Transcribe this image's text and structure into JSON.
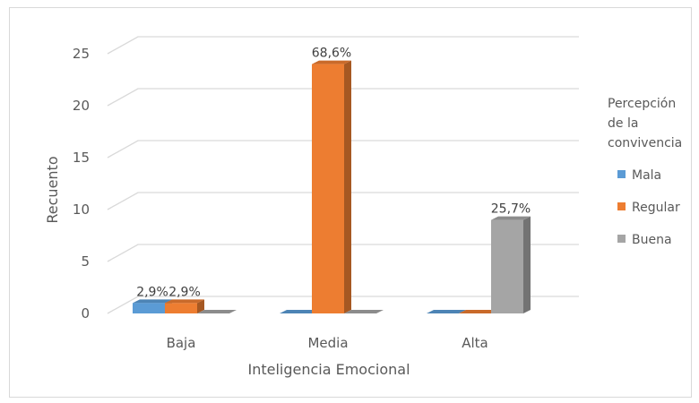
{
  "chart_data": {
    "type": "bar",
    "title": "",
    "xlabel": "Inteligencia Emocional",
    "ylabel": "Recuento",
    "ylim": [
      0,
      25
    ],
    "yticks": [
      "0",
      "5",
      "10",
      "15",
      "20",
      "25"
    ],
    "categories": [
      "Baja",
      "Media",
      "Alta"
    ],
    "legend_title": [
      "Percepción",
      "de la",
      "convivencia"
    ],
    "legend_position": "right",
    "grid": true,
    "series": [
      {
        "name": "Mala",
        "color": "#5b9bd5",
        "values": [
          1,
          0,
          0
        ],
        "labels": [
          "",
          "",
          ""
        ]
      },
      {
        "name": "Regular",
        "color": "#ed7d31",
        "values": [
          1,
          24,
          0
        ],
        "labels": [
          "2,9%",
          "68,6%",
          ""
        ]
      },
      {
        "name": "Buena",
        "color": "#a5a5a5",
        "values": [
          0,
          0,
          9
        ],
        "labels": [
          "",
          "",
          "25,7%"
        ]
      }
    ],
    "extra_labels": [
      {
        "category": 0,
        "series": 0,
        "text": "2,9%"
      }
    ]
  }
}
